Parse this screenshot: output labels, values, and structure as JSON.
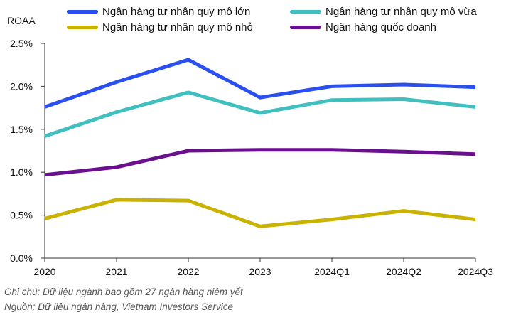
{
  "chart_data": {
    "type": "line",
    "ylabel": "ROAA",
    "categories": [
      "2020",
      "2021",
      "2022",
      "2023",
      "2024Q1",
      "2024Q2",
      "2024Q3"
    ],
    "ylim": [
      0,
      2.5
    ],
    "yticks": [
      "0.0%",
      "0.5%",
      "1.0%",
      "1.5%",
      "2.0%",
      "2.5%"
    ],
    "grid": false,
    "legend_position": "top",
    "series": [
      {
        "name": "Ngân hàng tư nhân quy mô lớn",
        "color": "#2A4FF0",
        "values": [
          1.76,
          2.05,
          2.31,
          1.87,
          2.0,
          2.02,
          1.99
        ]
      },
      {
        "name": "Ngân hàng tư nhân quy mô vừa",
        "color": "#3FBFBF",
        "values": [
          1.42,
          1.7,
          1.93,
          1.69,
          1.84,
          1.85,
          1.76
        ]
      },
      {
        "name": "Ngân hàng tư nhân quy mô nhỏ",
        "color": "#C9B200",
        "values": [
          0.46,
          0.68,
          0.67,
          0.37,
          0.45,
          0.55,
          0.45
        ]
      },
      {
        "name": "Ngân hàng quốc doanh",
        "color": "#6A0F8E",
        "values": [
          0.97,
          1.06,
          1.25,
          1.26,
          1.26,
          1.24,
          1.21
        ]
      }
    ]
  },
  "notes": {
    "note": "Ghi chú: Dữ liệu ngành bao gồm 27 ngân hàng niêm yết",
    "source": "Nguồn: Dữ liệu ngân hàng, Vietnam Investors Service"
  }
}
